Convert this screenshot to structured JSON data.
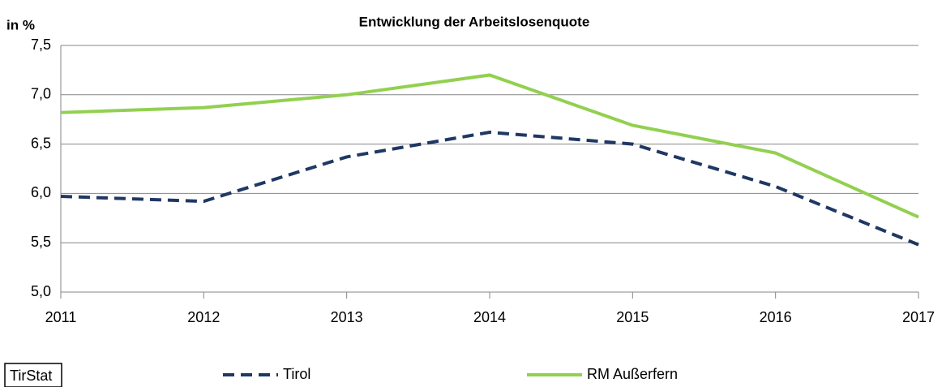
{
  "chart_data": {
    "type": "line",
    "title": "Entwicklung der Arbeitslosenquote",
    "y_label": "in %",
    "source": "TirStat",
    "x": [
      2011,
      2012,
      2013,
      2014,
      2015,
      2016,
      2017
    ],
    "xlim": [
      2011,
      2017
    ],
    "xticks": [
      2011,
      2012,
      2013,
      2014,
      2015,
      2016,
      2017
    ],
    "ylim": [
      5,
      7.5
    ],
    "yticks": [
      {
        "value": 5,
        "label": "5,0"
      },
      {
        "value": 5.5,
        "label": "5,5"
      },
      {
        "value": 6,
        "label": "6,0"
      },
      {
        "value": 6.5,
        "label": "6,5"
      },
      {
        "value": 7,
        "label": "7,0"
      },
      {
        "value": 7.5,
        "label": "7,5"
      }
    ],
    "grid": true,
    "legend": "bottom",
    "series": [
      {
        "name": "Tirol",
        "color": "#1f3864",
        "dashed": true,
        "values": [
          5.97,
          5.92,
          6.37,
          6.62,
          6.5,
          6.07,
          5.48
        ]
      },
      {
        "name": "RM Außerfern",
        "color": "#92d050",
        "dashed": false,
        "values": [
          6.82,
          6.87,
          7.0,
          7.2,
          6.69,
          6.41,
          5.76
        ]
      }
    ]
  }
}
